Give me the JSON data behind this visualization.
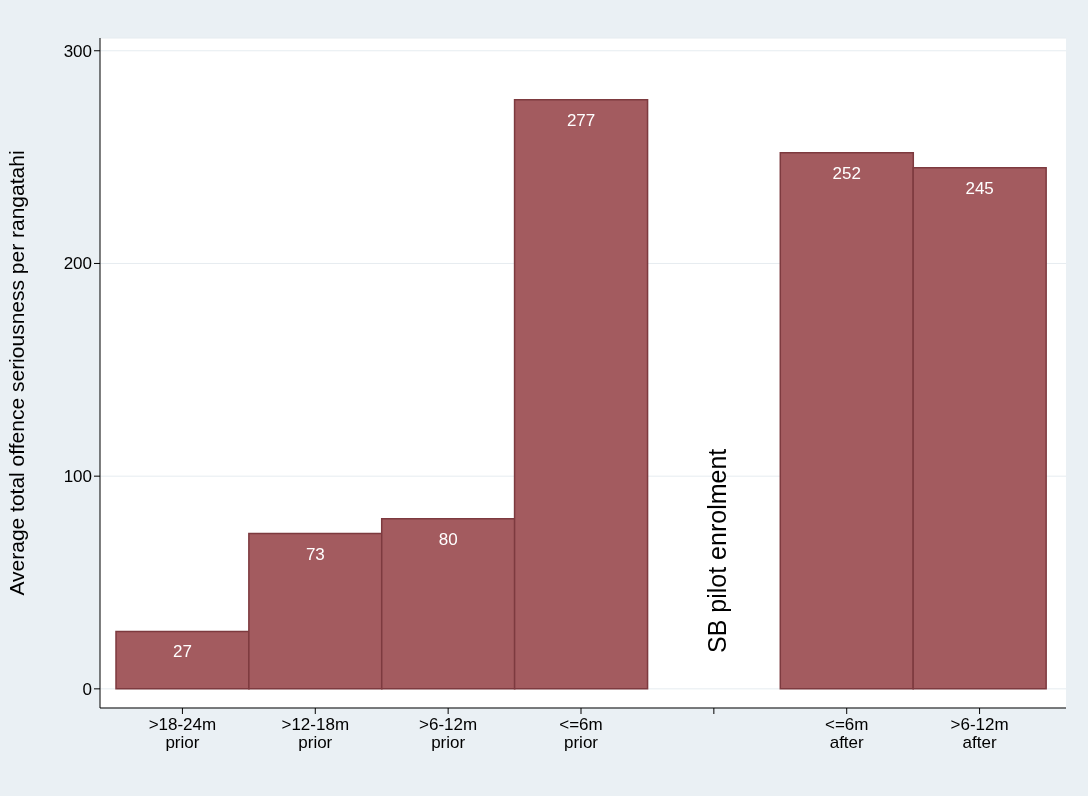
{
  "chart_data": {
    "type": "bar",
    "ylabel": "Average total offence seriousness per rangatahi",
    "categories": [
      ">18-24m prior",
      ">12-18m prior",
      ">6-12m prior",
      "<=6m prior",
      null,
      "<=6m after",
      ">6-12m after"
    ],
    "values": [
      27,
      73,
      80,
      277,
      null,
      252,
      245
    ],
    "color": "#a35b5f",
    "ylim": [
      -9,
      306
    ],
    "yticks": [
      0,
      100,
      200,
      300
    ],
    "grid": "y",
    "data_labels": true,
    "annotations": [
      "SB pilot enrolment"
    ]
  }
}
